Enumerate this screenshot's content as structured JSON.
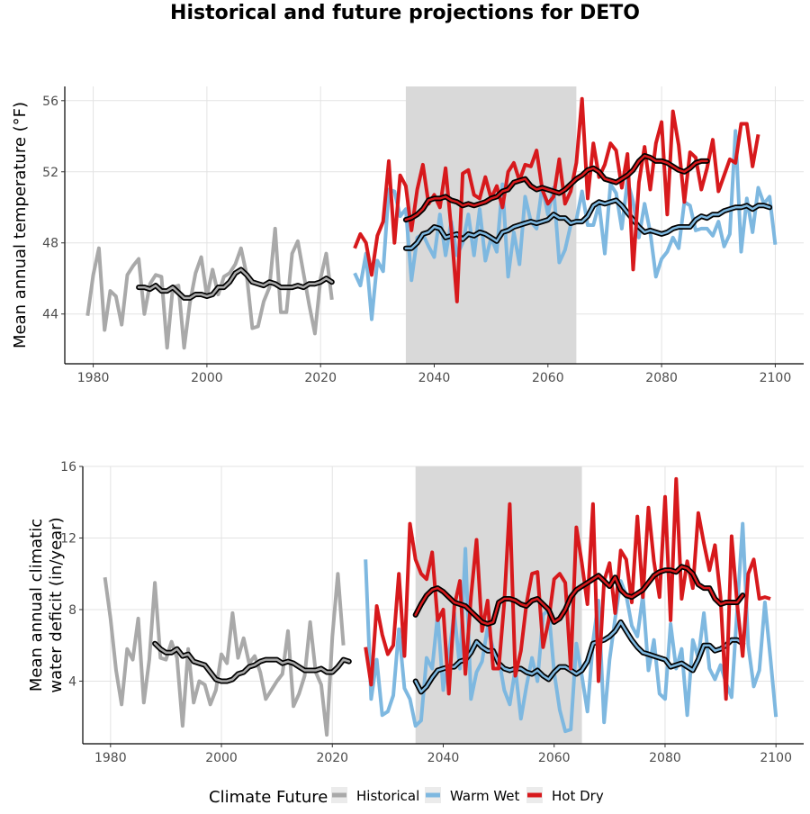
{
  "figure": {
    "title": "Historical and future projections for DETO"
  },
  "chart_data": [
    {
      "type": "line",
      "ylabel": "Mean annual temperature (°F)",
      "xlabel": "",
      "xlim": [
        1975,
        2105
      ],
      "ylim": [
        41.2,
        56.8
      ],
      "x_ticks": [
        1980,
        2000,
        2020,
        2040,
        2060,
        2080,
        2100
      ],
      "y_ticks": [
        44,
        48,
        52,
        56
      ],
      "grid": true,
      "shaded_period": [
        2035,
        2065
      ],
      "series": [
        {
          "name": "Historical",
          "color": "#A9A9A9",
          "x_start": 1979,
          "values": [
            43.9,
            46.2,
            47.7,
            43.1,
            45.3,
            45.0,
            43.4,
            46.2,
            46.7,
            47.1,
            44.0,
            45.7,
            46.2,
            46.1,
            42.1,
            45.5,
            45.6,
            42.1,
            44.6,
            46.3,
            47.2,
            45.0,
            46.5,
            45.1,
            46.1,
            46.3,
            46.8,
            47.7,
            46.2,
            43.2,
            43.3,
            44.7,
            45.5,
            48.8,
            44.1,
            44.1,
            47.4,
            48.1,
            46.3,
            44.5,
            42.9,
            46.0,
            47.4,
            44.8
          ]
        },
        {
          "name": "Historical (smoothed)",
          "color": "#A9A9A9",
          "x_start": 1988,
          "values": [
            45.5,
            45.5,
            45.4,
            45.6,
            45.3,
            45.3,
            45.5,
            45.2,
            44.9,
            44.9,
            45.1,
            45.1,
            45.0,
            45.1,
            45.5,
            45.5,
            45.8,
            46.3,
            46.5,
            46.2,
            45.8,
            45.7,
            45.6,
            45.8,
            45.7,
            45.5,
            45.5,
            45.5,
            45.6,
            45.5,
            45.7,
            45.7,
            45.8,
            46.0,
            45.8
          ]
        },
        {
          "name": "Warm Wet",
          "color": "#7EB8E0",
          "x_start": 2026,
          "values": [
            46.3,
            45.6,
            47.4,
            43.7,
            47.0,
            46.4,
            51.0,
            50.9,
            49.5,
            49.9,
            45.9,
            48.3,
            48.5,
            47.8,
            47.2,
            49.6,
            47.3,
            49.2,
            47.3,
            48.0,
            49.6,
            47.3,
            49.9,
            47.0,
            48.3,
            47.5,
            51.3,
            46.1,
            48.6,
            46.8,
            50.6,
            49.2,
            48.8,
            51.2,
            49.6,
            51.1,
            46.9,
            47.6,
            49.0,
            49.3,
            50.9,
            49.0,
            49.0,
            50.2,
            47.4,
            51.3,
            50.8,
            48.8,
            51.5,
            50.3,
            48.3,
            50.2,
            48.6,
            46.1,
            47.1,
            47.5,
            48.3,
            47.7,
            50.3,
            50.1,
            48.7,
            48.8,
            48.8,
            48.4,
            49.2,
            47.8,
            48.5,
            54.3,
            47.5,
            50.5,
            48.6,
            51.1,
            50.2,
            50.6,
            47.9
          ]
        },
        {
          "name": "Warm Wet (smoothed)",
          "color": "#7EB8E0",
          "x_start": 2035,
          "values": [
            47.7,
            47.7,
            48.0,
            48.5,
            48.6,
            48.9,
            48.8,
            48.3,
            48.4,
            48.5,
            48.2,
            48.5,
            48.4,
            48.6,
            48.5,
            48.3,
            48.1,
            48.6,
            48.7,
            48.9,
            49.0,
            49.1,
            49.2,
            49.1,
            49.2,
            49.3,
            49.6,
            49.4,
            49.4,
            49.1,
            49.2,
            49.2,
            49.5,
            50.1,
            50.3,
            50.2,
            50.3,
            50.4,
            50.1,
            49.7,
            49.3,
            48.9,
            48.6,
            48.7,
            48.6,
            48.5,
            48.6,
            48.8,
            48.9,
            48.9,
            48.9,
            49.3,
            49.5,
            49.4,
            49.6,
            49.6,
            49.8,
            49.9,
            50.0,
            50.0,
            50.1,
            49.9,
            50.1,
            50.1,
            50.0
          ]
        },
        {
          "name": "Hot Dry",
          "color": "#D7191C",
          "x_start": 2026,
          "values": [
            47.7,
            48.5,
            48.0,
            46.2,
            48.4,
            49.2,
            52.6,
            48.0,
            51.8,
            51.2,
            48.7,
            51.0,
            52.4,
            50.2,
            50.7,
            50.0,
            52.2,
            48.8,
            44.7,
            51.9,
            52.1,
            50.7,
            50.5,
            51.7,
            50.5,
            51.2,
            50.0,
            52.0,
            52.5,
            51.5,
            52.4,
            52.3,
            53.2,
            51.0,
            50.2,
            50.6,
            52.7,
            50.2,
            50.9,
            52.5,
            56.1,
            50.5,
            53.6,
            51.7,
            52.4,
            53.6,
            53.2,
            51.1,
            53.0,
            46.5,
            51.4,
            53.4,
            51.0,
            53.6,
            54.8,
            49.6,
            55.4,
            53.5,
            50.3,
            53.1,
            52.8,
            51.0,
            52.2,
            53.8,
            50.9,
            51.8,
            52.7,
            52.5,
            54.7,
            54.7,
            52.3,
            54.1
          ]
        },
        {
          "name": "Hot Dry (smoothed)",
          "color": "#D7191C",
          "x_start": 2035,
          "values": [
            49.3,
            49.4,
            49.6,
            49.9,
            50.4,
            50.5,
            50.5,
            50.6,
            50.4,
            50.3,
            50.1,
            50.2,
            50.1,
            50.2,
            50.3,
            50.5,
            50.6,
            50.9,
            51.0,
            51.4,
            51.5,
            51.6,
            51.2,
            51.0,
            51.1,
            51.0,
            50.9,
            50.8,
            51.0,
            51.3,
            51.6,
            51.8,
            52.1,
            52.2,
            52.0,
            51.6,
            51.5,
            51.4,
            51.6,
            51.8,
            52.1,
            52.6,
            52.9,
            52.8,
            52.6,
            52.6,
            52.5,
            52.3,
            52.1,
            52.0,
            52.2,
            52.5,
            52.6,
            52.6
          ]
        }
      ]
    },
    {
      "type": "line",
      "ylabel": "Mean annual climatic water deficit (in/year)",
      "ylabel_lines": [
        "Mean annual climatic",
        "water deficit (in/year)"
      ],
      "xlabel": "",
      "xlim": [
        1975,
        2105
      ],
      "ylim": [
        0.5,
        16.0
      ],
      "x_ticks": [
        1980,
        2000,
        2020,
        2040,
        2060,
        2080,
        2100
      ],
      "y_ticks": [
        4,
        8,
        12,
        16
      ],
      "grid": true,
      "shaded_period": [
        2035,
        2065
      ],
      "series": [
        {
          "name": "Historical",
          "color": "#A9A9A9",
          "x_start": 1979,
          "values": [
            9.8,
            7.5,
            4.6,
            2.7,
            5.8,
            5.2,
            7.5,
            2.8,
            5.2,
            9.5,
            5.3,
            5.2,
            6.2,
            5.3,
            1.5,
            5.8,
            2.8,
            4.0,
            3.8,
            2.7,
            3.5,
            5.5,
            5.0,
            7.8,
            5.3,
            6.4,
            5.0,
            5.4,
            4.5,
            3.0,
            3.5,
            4.0,
            4.4,
            6.8,
            2.6,
            3.3,
            4.3,
            7.3,
            4.5,
            3.8,
            1.0,
            6.5,
            10.0,
            6.0
          ]
        },
        {
          "name": "Historical (smoothed)",
          "color": "#A9A9A9",
          "x_start": 1988,
          "values": [
            6.1,
            5.8,
            5.6,
            5.6,
            5.8,
            5.4,
            5.5,
            5.1,
            5.0,
            4.9,
            4.5,
            4.1,
            4.0,
            4.0,
            4.1,
            4.4,
            4.5,
            4.8,
            4.9,
            5.1,
            5.2,
            5.2,
            5.2,
            5.0,
            5.1,
            5.0,
            4.8,
            4.6,
            4.6,
            4.6,
            4.7,
            4.5,
            4.5,
            4.8,
            5.2,
            5.1
          ]
        },
        {
          "name": "Warm Wet",
          "color": "#7EB8E0",
          "x_start": 2026,
          "values": [
            10.8,
            3.0,
            5.2,
            2.1,
            2.3,
            3.2,
            6.9,
            3.6,
            3.0,
            1.5,
            1.8,
            5.3,
            4.7,
            7.7,
            3.5,
            5.5,
            7.8,
            4.7,
            11.4,
            3.0,
            4.5,
            5.1,
            7.0,
            5.8,
            5.3,
            3.5,
            2.7,
            4.7,
            1.9,
            3.7,
            5.3,
            4.0,
            7.7,
            8.0,
            4.5,
            2.4,
            1.2,
            1.3,
            6.1,
            4.3,
            2.3,
            6.2,
            8.5,
            1.7,
            5.2,
            7.5,
            9.6,
            8.8,
            7.1,
            6.5,
            8.8,
            4.6,
            6.3,
            3.3,
            3.0,
            7.2,
            4.7,
            5.8,
            2.1,
            6.3,
            5.3,
            7.8,
            4.7,
            4.1,
            4.9,
            3.9,
            3.1,
            8.0,
            12.8,
            6.0,
            3.7,
            4.6,
            8.4,
            5.3,
            2.0
          ]
        },
        {
          "name": "Warm Wet (smoothed)",
          "color": "#7EB8E0",
          "x_start": 2035,
          "values": [
            4.0,
            3.4,
            3.7,
            4.2,
            4.6,
            4.7,
            4.8,
            4.8,
            5.1,
            5.2,
            5.6,
            6.2,
            5.9,
            5.7,
            5.7,
            5.0,
            4.7,
            4.6,
            4.7,
            4.7,
            4.5,
            4.4,
            4.6,
            4.3,
            4.1,
            4.5,
            4.8,
            4.8,
            4.6,
            4.4,
            4.6,
            5.1,
            6.1,
            6.2,
            6.3,
            6.5,
            6.8,
            7.3,
            6.8,
            6.3,
            5.9,
            5.6,
            5.5,
            5.4,
            5.3,
            5.2,
            4.8,
            4.9,
            5.0,
            4.8,
            4.6,
            5.2,
            6.0,
            6.0,
            5.7,
            5.8,
            6.0,
            6.3,
            6.3,
            6.1
          ]
        },
        {
          "name": "Hot Dry",
          "color": "#D7191C",
          "x_start": 2026,
          "values": [
            5.9,
            3.8,
            8.2,
            6.6,
            5.5,
            6.0,
            10.0,
            5.4,
            12.8,
            10.8,
            10.0,
            9.7,
            11.2,
            7.4,
            8.0,
            3.3,
            8.2,
            9.6,
            4.4,
            8.7,
            11.9,
            6.8,
            8.5,
            4.7,
            4.7,
            8.4,
            13.9,
            4.3,
            5.7,
            8.3,
            10.0,
            10.1,
            5.9,
            7.4,
            9.7,
            10.0,
            9.5,
            4.7,
            12.6,
            10.6,
            8.3,
            13.9,
            4.0,
            9.6,
            10.6,
            7.8,
            11.3,
            10.8,
            8.4,
            13.2,
            8.7,
            13.7,
            10.7,
            8.7,
            14.3,
            7.4,
            15.3,
            8.6,
            10.7,
            9.2,
            13.4,
            11.7,
            10.2,
            11.6,
            8.7,
            3.0,
            12.1,
            8.3,
            5.4,
            10.0,
            10.8,
            8.6,
            8.7,
            8.6
          ]
        },
        {
          "name": "Hot Dry (smoothed)",
          "color": "#D7191C",
          "x_start": 2035,
          "values": [
            7.7,
            8.3,
            8.8,
            9.1,
            9.2,
            9.0,
            8.7,
            8.4,
            8.3,
            8.2,
            7.9,
            7.6,
            7.3,
            7.2,
            7.3,
            8.4,
            8.6,
            8.6,
            8.5,
            8.3,
            8.2,
            8.5,
            8.6,
            8.3,
            8.0,
            7.3,
            7.5,
            8.0,
            8.7,
            9.1,
            9.3,
            9.5,
            9.7,
            9.9,
            9.6,
            9.3,
            9.8,
            9.1,
            8.8,
            8.7,
            8.9,
            9.1,
            9.5,
            9.9,
            10.1,
            10.2,
            10.2,
            10.1,
            10.4,
            10.3,
            10.0,
            9.4,
            9.2,
            9.2,
            8.6,
            8.3,
            8.4,
            8.4,
            8.4,
            8.8
          ]
        }
      ]
    }
  ],
  "legend": {
    "title": "Climate Future",
    "position": "bottom",
    "items": [
      {
        "label": "Historical",
        "color": "#A9A9A9"
      },
      {
        "label": "Warm Wet",
        "color": "#7EB8E0"
      },
      {
        "label": "Hot Dry",
        "color": "#D7191C"
      }
    ]
  }
}
